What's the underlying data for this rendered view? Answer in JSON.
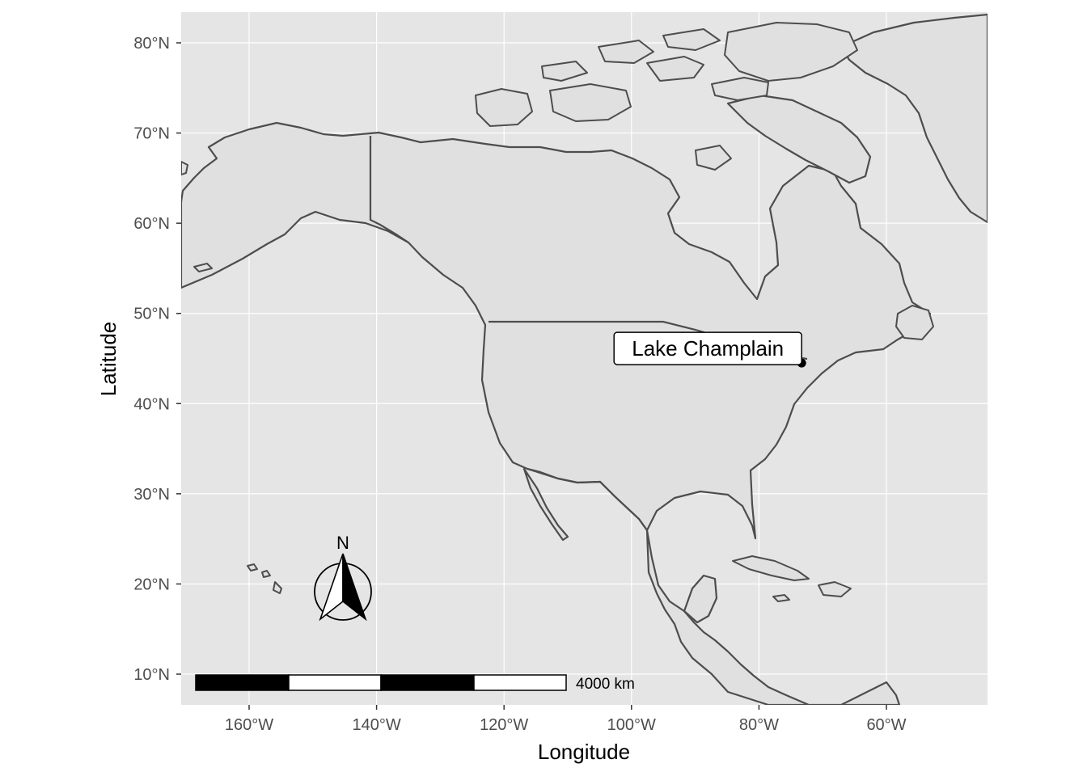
{
  "map": {
    "xlabel": "Longitude",
    "ylabel": "Latitude",
    "x_ticks": [
      {
        "value": -160,
        "label": "160°W"
      },
      {
        "value": -140,
        "label": "140°W"
      },
      {
        "value": -120,
        "label": "120°W"
      },
      {
        "value": -100,
        "label": "100°W"
      },
      {
        "value": -80,
        "label": "80°W"
      },
      {
        "value": -60,
        "label": "60°W"
      }
    ],
    "y_ticks": [
      {
        "value": 10,
        "label": "10°N"
      },
      {
        "value": 20,
        "label": "20°N"
      },
      {
        "value": 30,
        "label": "30°N"
      },
      {
        "value": 40,
        "label": "40°N"
      },
      {
        "value": 50,
        "label": "50°N"
      },
      {
        "value": 60,
        "label": "60°N"
      },
      {
        "value": 70,
        "label": "70°N"
      },
      {
        "value": 80,
        "label": "80°N"
      }
    ],
    "xlim": [
      -170,
      -45
    ],
    "ylim": [
      7,
      83
    ],
    "location": {
      "name": "Lake Champlain",
      "lon": -73.3,
      "lat": 44.5
    },
    "north_arrow_label": "N",
    "scale_bar": {
      "label": "4000 km",
      "segments": 4
    },
    "colors": {
      "panel": "#e5e5e5",
      "land": "#e0e0e0",
      "outline": "#4d4d4d",
      "grid": "#ffffff"
    }
  }
}
